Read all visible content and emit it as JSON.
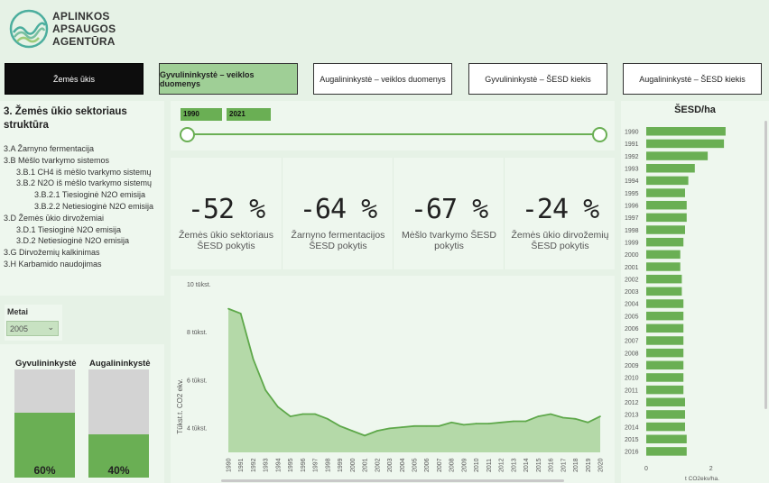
{
  "logo": {
    "lines": [
      "APLINKOS",
      "APSAUGOS",
      "AGENTŪRA"
    ]
  },
  "nav": [
    {
      "label": "Žemės ūkis"
    },
    {
      "label": "Gyvulininkystė – veiklos duomenys"
    },
    {
      "label": "Augalininkystė – veiklos duomenys"
    },
    {
      "label": "Gyvulininkystė – ŠESD kiekis"
    },
    {
      "label": "Augalininkystė – ŠESD kiekis"
    }
  ],
  "sidebar": {
    "title": "3. Žemės ūkio sektoriaus struktūra",
    "items": [
      {
        "label": "3.A Žarnyno fermentacija",
        "level": 0
      },
      {
        "label": "3.B Mėšlo tvarkymo sistemos",
        "level": 0
      },
      {
        "label": "3.B.1 CH4 iš mėšlo tvarkymo sistemų",
        "level": 1
      },
      {
        "label": "3.B.2 N2O iš mėšlo tvarkymo sistemų",
        "level": 1
      },
      {
        "label": "3.B.2.1 Tiesioginė N2O emisija",
        "level": 2
      },
      {
        "label": "3.B.2.2 Netiesioginė N2O emisija",
        "level": 2
      },
      {
        "label": "3.D Žemės ūkio dirvožemiai",
        "level": 0
      },
      {
        "label": "3.D.1 Tiesioginė N2O emisija",
        "level": 1
      },
      {
        "label": "3.D.2 Netiesioginė N2O emisija",
        "level": 1
      },
      {
        "label": "3.G Dirvožemių kalkinimas",
        "level": 0
      },
      {
        "label": "3.H Karbamido naudojimas",
        "level": 0
      }
    ]
  },
  "year_filter": {
    "label": "Metai",
    "value": "2005"
  },
  "shares": [
    {
      "label": "Gyvulininkystė",
      "percent": 60,
      "percent_text": "60%"
    },
    {
      "label": "Augalininkystė",
      "percent": 40,
      "percent_text": "40%"
    }
  ],
  "range": {
    "start": "1990",
    "end": "2021"
  },
  "kpis": [
    {
      "value": "-52 %",
      "label": "Žemės ūkio sektoriaus ŠESD pokytis"
    },
    {
      "value": "-64 %",
      "label": "Žarnyno fermentacijos ŠESD pokytis"
    },
    {
      "value": "-67 %",
      "label": "Mėšlo tvarkymo ŠESD pokytis"
    },
    {
      "value": "-24 %",
      "label": "Žemės ūkio dirvožemių ŠESD pokytis"
    }
  ],
  "colors": {
    "green": "#6aaf54",
    "bar_green": "#6aaf54",
    "area_fill": "#b4d9a8",
    "line": "#5ea84a",
    "gray": "#d3d3d3"
  },
  "chart_data": [
    {
      "type": "area",
      "title": "",
      "ylabel": "Tūkst.t. CO2 ekv.",
      "xlabel": "",
      "x": [
        "1990",
        "1991",
        "1992",
        "1993",
        "1994",
        "1995",
        "1996",
        "1997",
        "1998",
        "1999",
        "2000",
        "2001",
        "2002",
        "2003",
        "2004",
        "2005",
        "2006",
        "2007",
        "2008",
        "2009",
        "2010",
        "2011",
        "2012",
        "2013",
        "2014",
        "2015",
        "2016",
        "2017",
        "2018",
        "2019",
        "2020"
      ],
      "values": [
        9.0,
        8.8,
        6.9,
        5.6,
        4.9,
        4.5,
        4.6,
        4.6,
        4.4,
        4.1,
        3.9,
        3.7,
        3.9,
        4.0,
        4.05,
        4.1,
        4.1,
        4.1,
        4.25,
        4.15,
        4.2,
        4.2,
        4.25,
        4.3,
        4.3,
        4.5,
        4.6,
        4.45,
        4.4,
        4.25,
        4.5
      ],
      "yticks": [
        {
          "value": 4,
          "label": "4 tūkst."
        },
        {
          "value": 6,
          "label": "6 tūkst."
        },
        {
          "value": 8,
          "label": "8 tūkst."
        },
        {
          "value": 10,
          "label": "10 tūkst."
        }
      ],
      "ylim": [
        3,
        10
      ]
    },
    {
      "type": "bar",
      "orientation": "horizontal",
      "title": "ŠESD/ha",
      "xlabel": "t CO2ekv/ha.",
      "categories": [
        "1990",
        "1991",
        "1992",
        "1993",
        "1994",
        "1995",
        "1996",
        "1997",
        "1998",
        "1999",
        "2000",
        "2001",
        "2002",
        "2003",
        "2004",
        "2005",
        "2006",
        "2007",
        "2008",
        "2009",
        "2010",
        "2011",
        "2012",
        "2013",
        "2014",
        "2015",
        "2016"
      ],
      "values": [
        2.45,
        2.4,
        1.9,
        1.5,
        1.3,
        1.2,
        1.25,
        1.25,
        1.2,
        1.15,
        1.05,
        1.05,
        1.1,
        1.1,
        1.15,
        1.15,
        1.15,
        1.15,
        1.15,
        1.15,
        1.15,
        1.15,
        1.2,
        1.2,
        1.2,
        1.25,
        1.25
      ],
      "xticks": [
        0,
        2
      ],
      "xlim": [
        0,
        2.9
      ]
    }
  ]
}
